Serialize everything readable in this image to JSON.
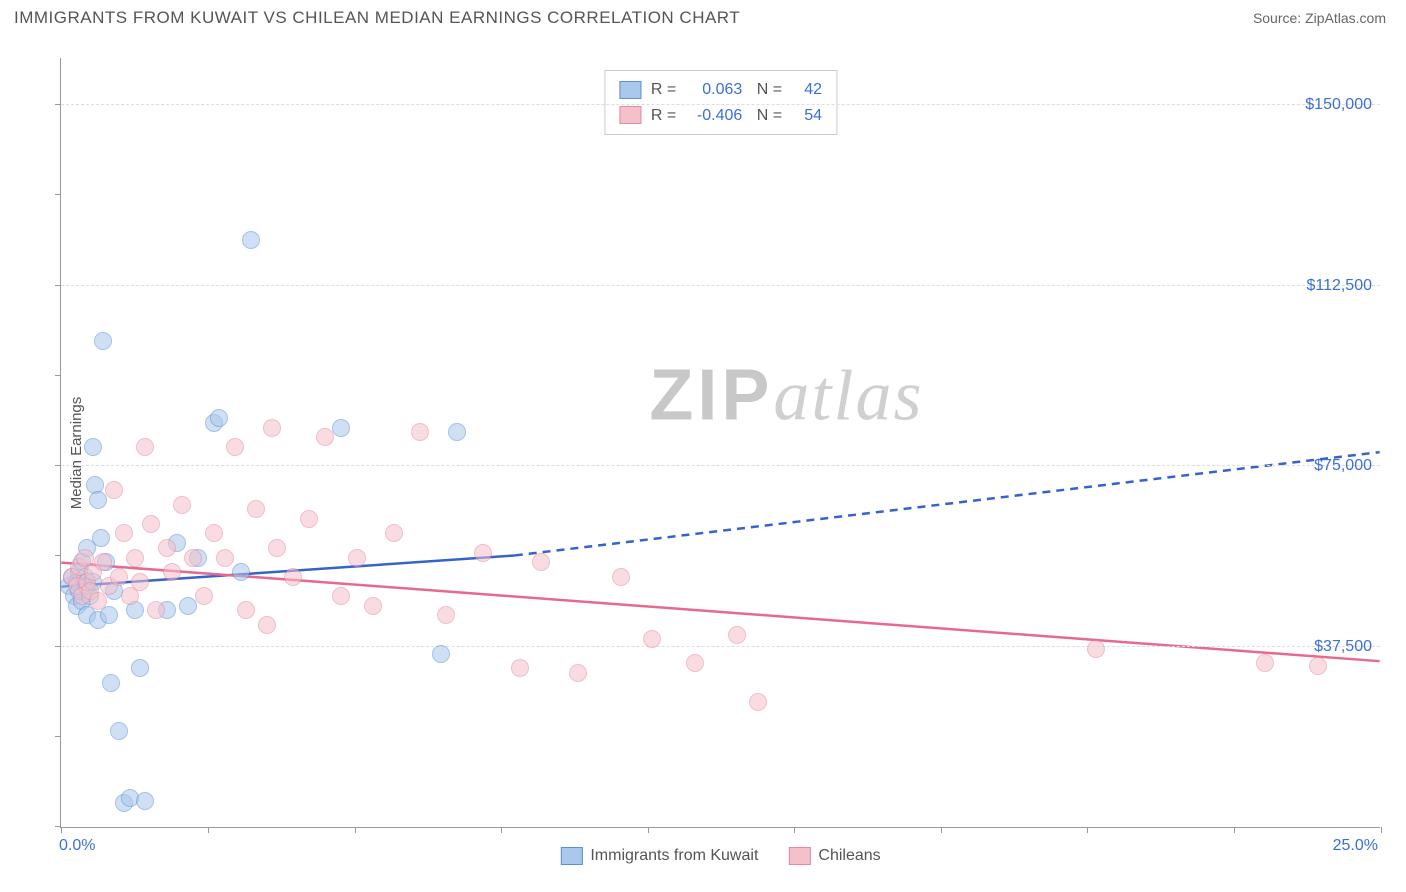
{
  "header": {
    "title": "IMMIGRANTS FROM KUWAIT VS CHILEAN MEDIAN EARNINGS CORRELATION CHART",
    "source_label": "Source:",
    "source_value": "ZipAtlas.com"
  },
  "watermark": {
    "zip": "ZIP",
    "atlas": "atlas"
  },
  "chart": {
    "type": "scatter",
    "y_axis_label": "Median Earnings",
    "xlim": [
      0,
      25
    ],
    "ylim": [
      0,
      160000
    ],
    "x_start_label": "0.0%",
    "x_end_label": "25.0%",
    "y_ticks": [
      {
        "v": 37500,
        "label": "$37,500"
      },
      {
        "v": 75000,
        "label": "$75,000"
      },
      {
        "v": 112500,
        "label": "$112,500"
      },
      {
        "v": 150000,
        "label": "$150,000"
      }
    ],
    "x_tick_positions": [
      0,
      2.78,
      5.56,
      8.33,
      11.11,
      13.89,
      16.67,
      19.44,
      22.22,
      25
    ],
    "y_tick_minor": [
      0,
      18750,
      37500,
      56250,
      75000,
      93750,
      112500,
      131250,
      150000
    ],
    "background_color": "#ffffff",
    "grid_color": "#dddddd",
    "axis_color": "#999999",
    "label_color": "#3b6fd8",
    "point_radius": 9,
    "point_opacity": 0.55,
    "series": [
      {
        "name": "Immigrants from Kuwait",
        "key": "kuwait",
        "fill": "#a9c8ec",
        "stroke": "#5b8fd6",
        "line_color": "#3563c9",
        "R": "0.063",
        "N": "42",
        "trend": {
          "x1": 0,
          "y1": 50000,
          "x2": 8.6,
          "y2": 56500,
          "dash_to_x": 25,
          "dash_to_y": 78000
        },
        "points": [
          [
            0.15,
            50000
          ],
          [
            0.2,
            52000
          ],
          [
            0.25,
            48000
          ],
          [
            0.3,
            51000
          ],
          [
            0.3,
            46000
          ],
          [
            0.35,
            53000
          ],
          [
            0.35,
            49000
          ],
          [
            0.4,
            55000
          ],
          [
            0.4,
            47000
          ],
          [
            0.45,
            52000
          ],
          [
            0.5,
            50000
          ],
          [
            0.5,
            44000
          ],
          [
            0.55,
            48000
          ],
          [
            0.6,
            79000
          ],
          [
            0.6,
            51000
          ],
          [
            0.65,
            71000
          ],
          [
            0.7,
            68000
          ],
          [
            0.7,
            43000
          ],
          [
            0.75,
            60000
          ],
          [
            0.8,
            101000
          ],
          [
            0.85,
            55000
          ],
          [
            0.9,
            44000
          ],
          [
            0.95,
            30000
          ],
          [
            1.0,
            49000
          ],
          [
            1.1,
            20000
          ],
          [
            1.2,
            5000
          ],
          [
            1.3,
            6000
          ],
          [
            1.4,
            45000
          ],
          [
            1.5,
            33000
          ],
          [
            1.6,
            5500
          ],
          [
            2.0,
            45000
          ],
          [
            2.2,
            59000
          ],
          [
            2.4,
            46000
          ],
          [
            2.6,
            56000
          ],
          [
            2.9,
            84000
          ],
          [
            3.0,
            85000
          ],
          [
            3.4,
            53000
          ],
          [
            3.6,
            122000
          ],
          [
            5.3,
            83000
          ],
          [
            7.5,
            82000
          ],
          [
            7.2,
            36000
          ],
          [
            0.5,
            58000
          ]
        ]
      },
      {
        "name": "Chileans",
        "key": "chileans",
        "fill": "#f4c0cc",
        "stroke": "#e48aa2",
        "line_color": "#e76a8e",
        "R": "-0.406",
        "N": "54",
        "trend": {
          "x1": 0,
          "y1": 55000,
          "x2": 25,
          "y2": 34500
        },
        "points": [
          [
            0.2,
            52000
          ],
          [
            0.3,
            50000
          ],
          [
            0.35,
            54000
          ],
          [
            0.4,
            48000
          ],
          [
            0.45,
            56000
          ],
          [
            0.5,
            51000
          ],
          [
            0.55,
            49000
          ],
          [
            0.6,
            53000
          ],
          [
            0.7,
            47000
          ],
          [
            0.8,
            55000
          ],
          [
            0.9,
            50000
          ],
          [
            1.0,
            70000
          ],
          [
            1.1,
            52000
          ],
          [
            1.2,
            61000
          ],
          [
            1.3,
            48000
          ],
          [
            1.4,
            56000
          ],
          [
            1.5,
            51000
          ],
          [
            1.6,
            79000
          ],
          [
            1.8,
            45000
          ],
          [
            2.0,
            58000
          ],
          [
            2.1,
            53000
          ],
          [
            2.3,
            67000
          ],
          [
            2.5,
            56000
          ],
          [
            2.7,
            48000
          ],
          [
            2.9,
            61000
          ],
          [
            3.1,
            56000
          ],
          [
            3.3,
            79000
          ],
          [
            3.5,
            45000
          ],
          [
            3.7,
            66000
          ],
          [
            3.9,
            42000
          ],
          [
            4.1,
            58000
          ],
          [
            4.4,
            52000
          ],
          [
            4.7,
            64000
          ],
          [
            5.0,
            81000
          ],
          [
            5.3,
            48000
          ],
          [
            5.6,
            56000
          ],
          [
            5.9,
            46000
          ],
          [
            6.3,
            61000
          ],
          [
            6.8,
            82000
          ],
          [
            7.3,
            44000
          ],
          [
            8.0,
            57000
          ],
          [
            8.7,
            33000
          ],
          [
            9.1,
            55000
          ],
          [
            9.8,
            32000
          ],
          [
            10.6,
            52000
          ],
          [
            11.2,
            39000
          ],
          [
            12.0,
            34000
          ],
          [
            12.8,
            40000
          ],
          [
            13.2,
            26000
          ],
          [
            19.6,
            37000
          ],
          [
            22.8,
            34000
          ],
          [
            23.8,
            33500
          ],
          [
            4.0,
            83000
          ],
          [
            1.7,
            63000
          ]
        ]
      }
    ],
    "legend_bottom": [
      {
        "key": "kuwait",
        "label": "Immigrants from Kuwait"
      },
      {
        "key": "chileans",
        "label": "Chileans"
      }
    ]
  }
}
